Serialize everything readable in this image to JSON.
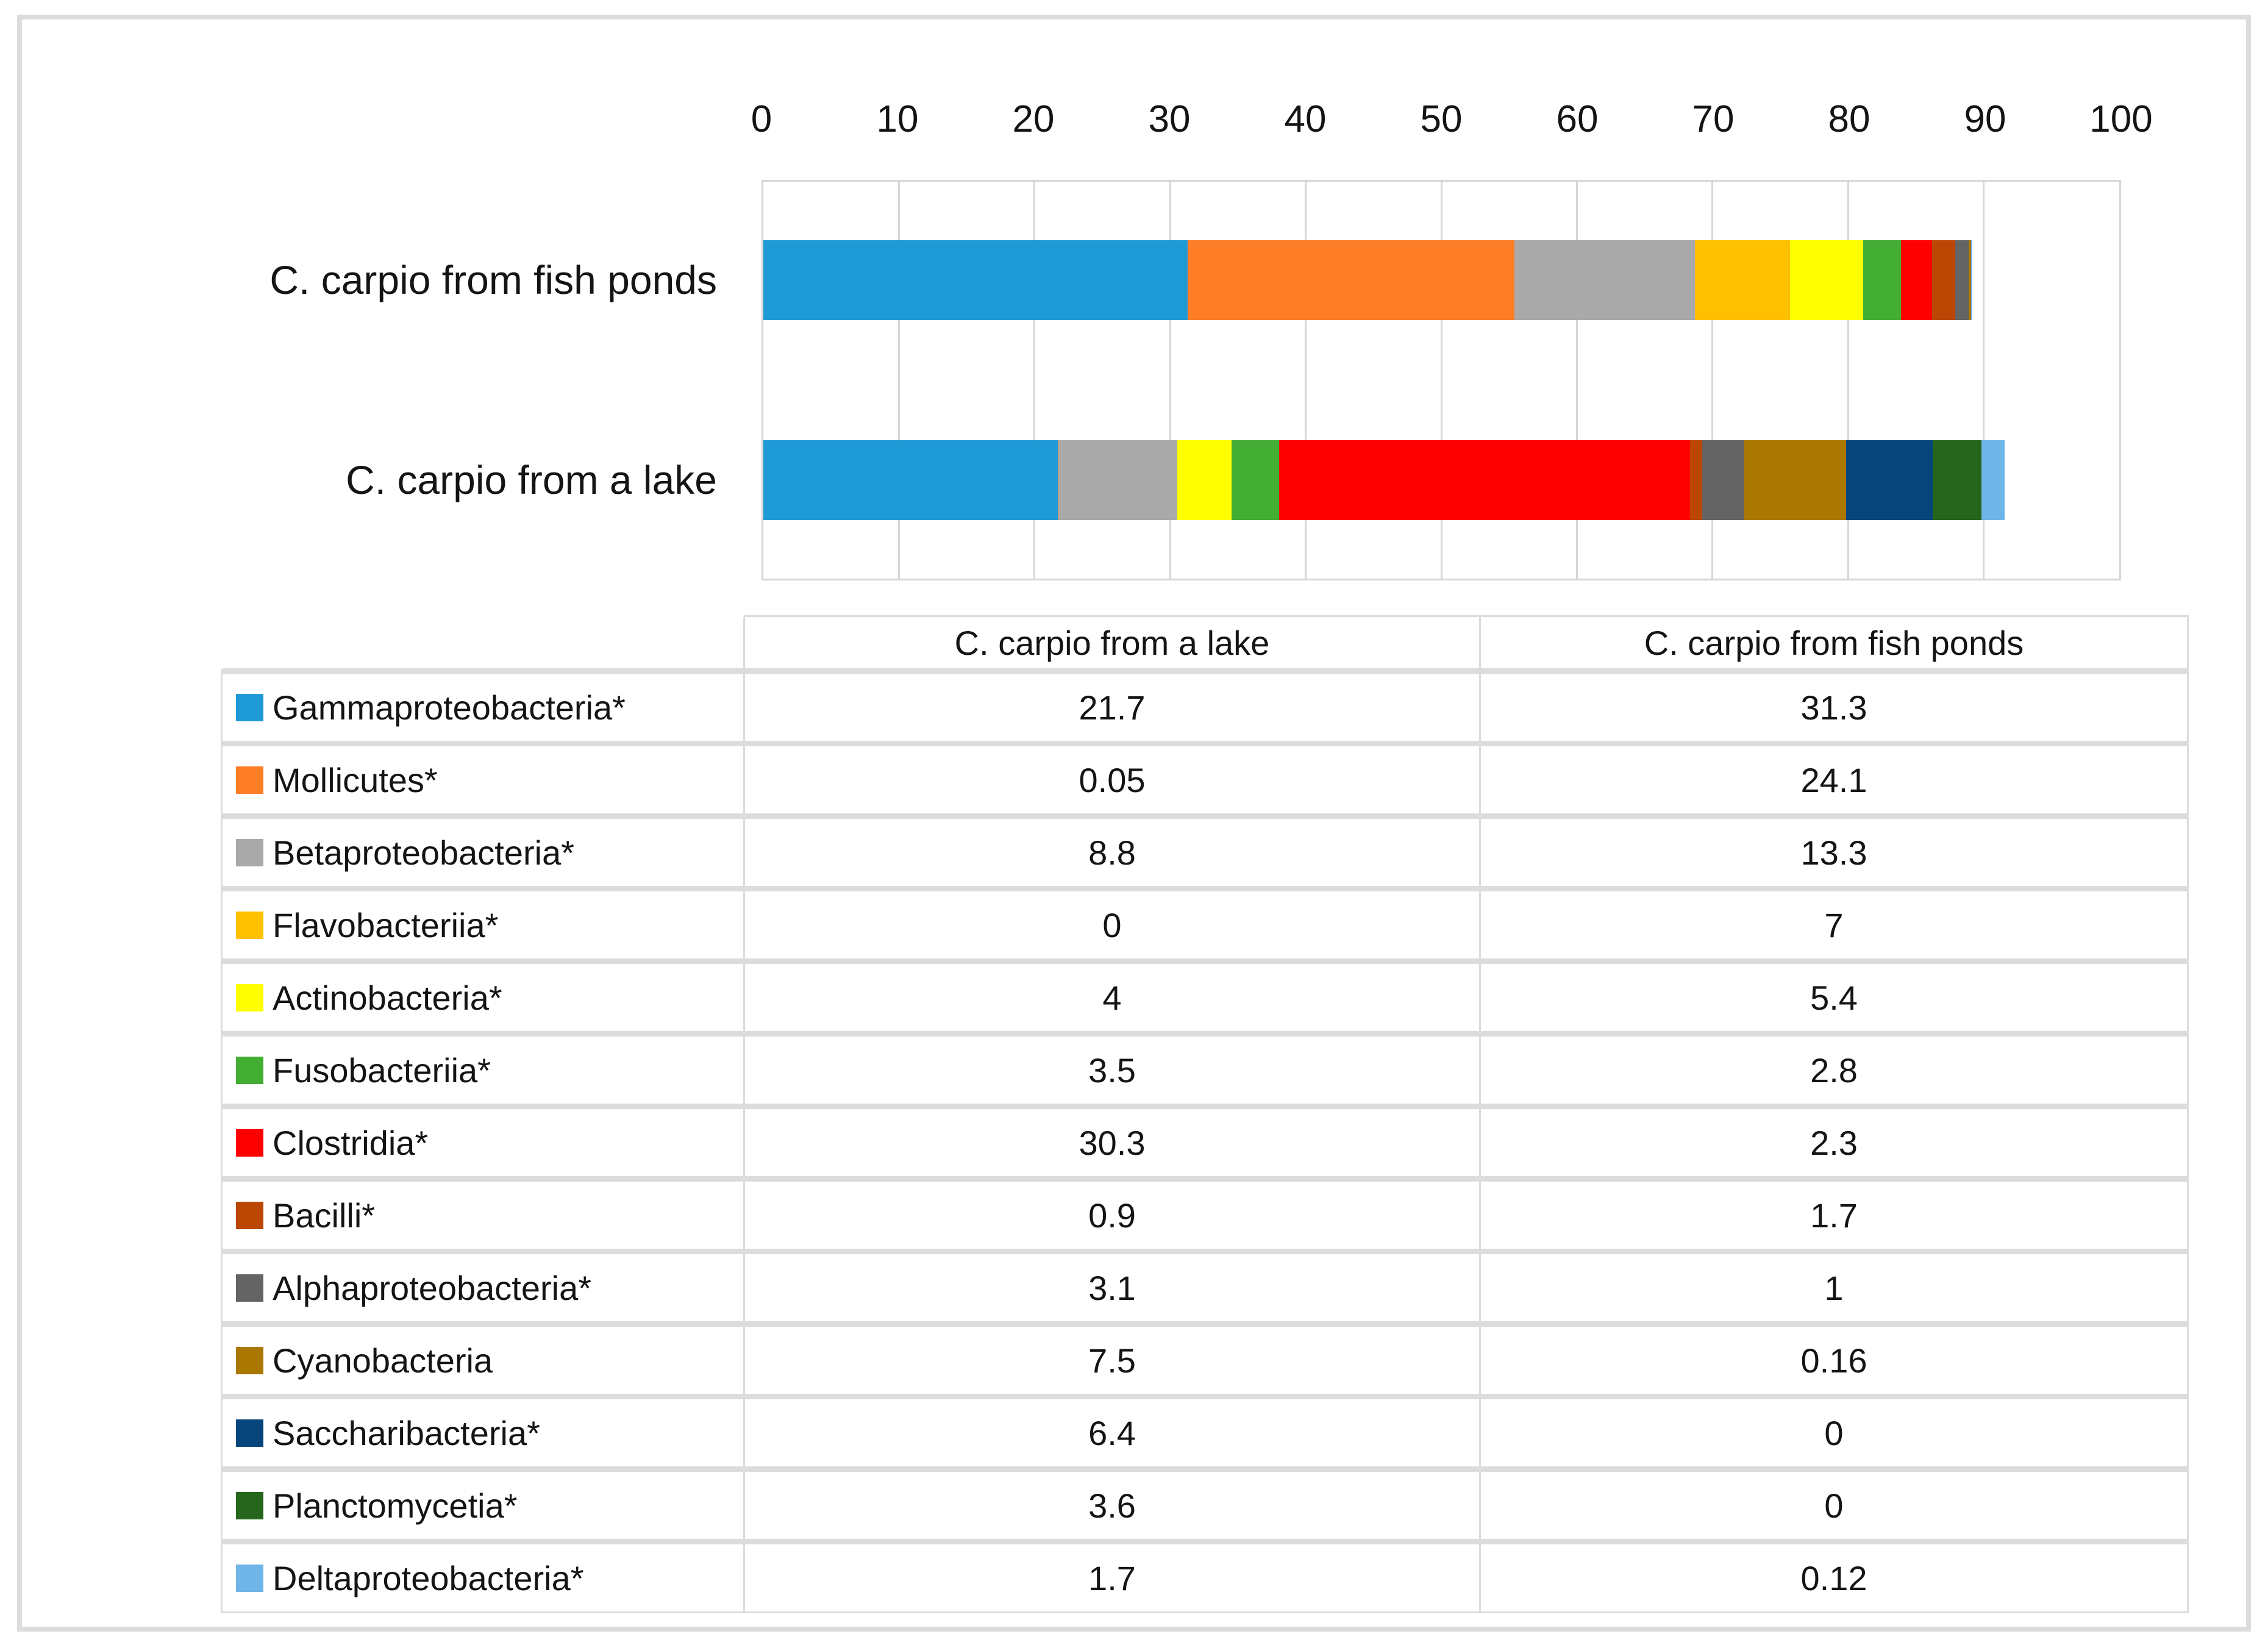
{
  "chart": {
    "axis_ticks": [
      "0",
      "10",
      "20",
      "30",
      "40",
      "50",
      "60",
      "70",
      "80",
      "90",
      "100"
    ],
    "category_labels": {
      "fish_ponds": "C. carpio from fish ponds",
      "lake": "C. carpio from a lake"
    }
  },
  "chart_data": {
    "type": "bar",
    "orientation": "horizontal",
    "stacked": true,
    "title": "",
    "xlabel": "",
    "ylabel": "",
    "xlim": [
      0,
      100
    ],
    "grid": "vertical gridlines every 10",
    "legend_position": "table below chart",
    "categories": [
      "C. carpio from fish ponds",
      "C. carpio from a lake"
    ],
    "series": [
      {
        "name": "Gammaproteobacteria*",
        "color": "#1E9BD7",
        "values": [
          31.3,
          21.7
        ]
      },
      {
        "name": "Mollicutes*",
        "color": "#FD7E27",
        "values": [
          24.1,
          0.05
        ]
      },
      {
        "name": "Betaproteobacteria*",
        "color": "#A9A9A9",
        "values": [
          13.3,
          8.8
        ]
      },
      {
        "name": "Flavobacteriia*",
        "color": "#FFC000",
        "values": [
          7,
          0
        ]
      },
      {
        "name": "Actinobacteria*",
        "color": "#FFFF00",
        "values": [
          5.4,
          4
        ]
      },
      {
        "name": "Fusobacteriia*",
        "color": "#44AD34",
        "values": [
          2.8,
          3.5
        ]
      },
      {
        "name": "Clostridia*",
        "color": "#FE0000",
        "values": [
          2.3,
          30.3
        ]
      },
      {
        "name": "Bacilli*",
        "color": "#BC4705",
        "values": [
          1.7,
          0.9
        ]
      },
      {
        "name": "Alphaproteobacteria*",
        "color": "#646464",
        "values": [
          1,
          3.1
        ]
      },
      {
        "name": "Cyanobacteria",
        "color": "#AA7700",
        "values": [
          0.16,
          7.5
        ]
      },
      {
        "name": "Saccharibacteria*",
        "color": "#05457B",
        "values": [
          0,
          6.4
        ]
      },
      {
        "name": "Planctomycetia*",
        "color": "#26661C",
        "values": [
          0,
          3.6
        ]
      },
      {
        "name": "Deltaproteobacteria*",
        "color": "#6FB5E8",
        "values": [
          0.12,
          1.7
        ]
      }
    ]
  },
  "table": {
    "column_headers": [
      "C. carpio from a lake",
      "C. carpio from fish ponds"
    ],
    "rows": [
      {
        "name": "Gammaproteobacteria*",
        "color": "#1E9BD7",
        "lake": "21.7",
        "fish_ponds": "31.3"
      },
      {
        "name": "Mollicutes*",
        "color": "#FD7E27",
        "lake": "0.05",
        "fish_ponds": "24.1"
      },
      {
        "name": "Betaproteobacteria*",
        "color": "#A9A9A9",
        "lake": "8.8",
        "fish_ponds": "13.3"
      },
      {
        "name": "Flavobacteriia*",
        "color": "#FFC000",
        "lake": "0",
        "fish_ponds": "7"
      },
      {
        "name": "Actinobacteria*",
        "color": "#FFFF00",
        "lake": "4",
        "fish_ponds": "5.4"
      },
      {
        "name": "Fusobacteriia*",
        "color": "#44AD34",
        "lake": "3.5",
        "fish_ponds": "2.8"
      },
      {
        "name": "Clostridia*",
        "color": "#FE0000",
        "lake": "30.3",
        "fish_ponds": "2.3"
      },
      {
        "name": "Bacilli*",
        "color": "#BC4705",
        "lake": "0.9",
        "fish_ponds": "1.7"
      },
      {
        "name": "Alphaproteobacteria*",
        "color": "#646464",
        "lake": "3.1",
        "fish_ponds": "1"
      },
      {
        "name": "Cyanobacteria",
        "color": "#AA7700",
        "lake": "7.5",
        "fish_ponds": "0.16"
      },
      {
        "name": "Saccharibacteria*",
        "color": "#05457B",
        "lake": "6.4",
        "fish_ponds": "0"
      },
      {
        "name": "Planctomycetia*",
        "color": "#26661C",
        "lake": "3.6",
        "fish_ponds": "0"
      },
      {
        "name": "Deltaproteobacteria*",
        "color": "#6FB5E8",
        "lake": "1.7",
        "fish_ponds": "0.12"
      }
    ]
  },
  "colors": {
    "figure_border": "#DCDCDC",
    "gridline": "#D6D6D6",
    "text": "#141414"
  }
}
